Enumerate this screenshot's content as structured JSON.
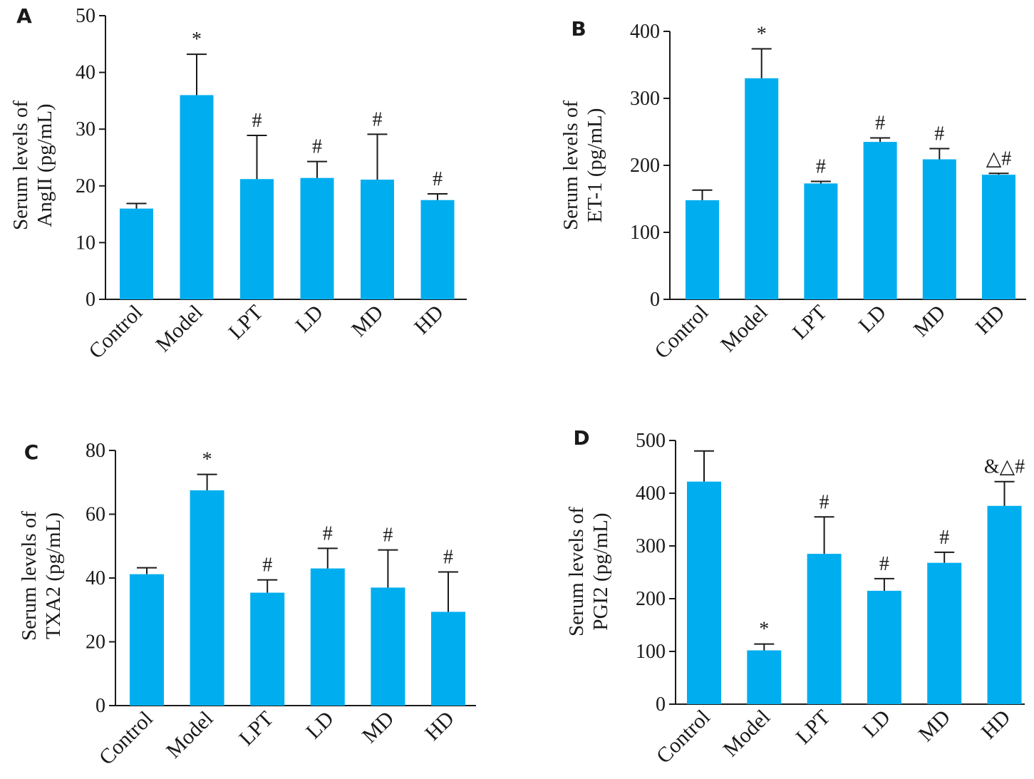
{
  "bar_color": "#00aeef",
  "chart_data": [
    {
      "panel": "A",
      "type": "bar",
      "categories": [
        "Control",
        "Model",
        "LPT",
        "LD",
        "MD",
        "HD"
      ],
      "values": [
        16,
        36,
        21.2,
        21.4,
        21.1,
        17.5
      ],
      "errors": [
        0.9,
        7.2,
        7.7,
        2.9,
        8.0,
        1.1
      ],
      "annotations": [
        "",
        "*",
        "#",
        "#",
        "#",
        "#"
      ],
      "ylabel_line1": "Serum levels of",
      "ylabel_line2": "AngII (pg/mL)",
      "ylim": [
        0,
        50
      ],
      "yticks": [
        0,
        10,
        20,
        30,
        40,
        50
      ]
    },
    {
      "panel": "B",
      "type": "bar",
      "categories": [
        "Control",
        "Model",
        "LPT",
        "LD",
        "MD",
        "HD"
      ],
      "values": [
        148,
        330,
        173,
        235,
        209,
        186
      ],
      "errors": [
        15,
        44,
        3,
        6,
        16,
        2
      ],
      "annotations": [
        "",
        "*",
        "#",
        "#",
        "#",
        "△#"
      ],
      "ylabel_line1": "Serum levels of",
      "ylabel_line2": "ET-1 (pg/mL)",
      "ylim": [
        0,
        400
      ],
      "yticks": [
        0,
        100,
        200,
        300,
        400
      ]
    },
    {
      "panel": "C",
      "type": "bar",
      "categories": [
        "Control",
        "Model",
        "LPT",
        "LD",
        "MD",
        "HD"
      ],
      "values": [
        41.2,
        67.5,
        35.4,
        43,
        37,
        29.4
      ],
      "errors": [
        2.0,
        5.0,
        4.0,
        6.3,
        11.8,
        12.5
      ],
      "annotations": [
        "",
        "*",
        "#",
        "#",
        "#",
        "#"
      ],
      "ylabel_line1": "Serum levels of",
      "ylabel_line2": "TXA2 (pg/mL)",
      "ylim": [
        0,
        80
      ],
      "yticks": [
        0,
        20,
        40,
        60,
        80
      ]
    },
    {
      "panel": "D",
      "type": "bar",
      "categories": [
        "Control",
        "Model",
        "LPT",
        "LD",
        "MD",
        "HD"
      ],
      "values": [
        422,
        102,
        285,
        215,
        268,
        376
      ],
      "errors": [
        58,
        12,
        70,
        23,
        20,
        46
      ],
      "annotations": [
        "",
        "*",
        "#",
        "#",
        "#",
        "&△#"
      ],
      "ylabel_line1": "Serum levels of",
      "ylabel_line2": "PGI2 (pg/mL)",
      "ylim": [
        0,
        500
      ],
      "yticks": [
        0,
        100,
        200,
        300,
        400,
        500
      ]
    }
  ]
}
